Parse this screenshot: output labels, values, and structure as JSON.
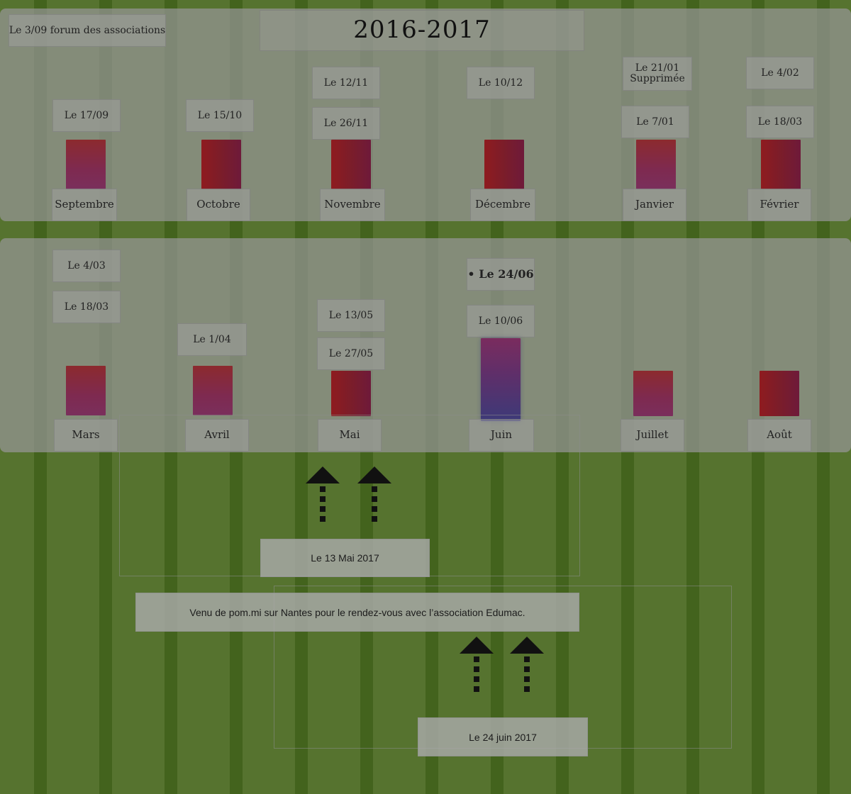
{
  "title": "2016-2017",
  "forum": "Le 3/09 forum des associations",
  "row1": {
    "months": [
      "Septembre",
      "Octobre",
      "Novembre",
      "Décembre",
      "Janvier",
      "Février"
    ],
    "septembre": {
      "d1": "Le 17/09"
    },
    "octobre": {
      "d1": "Le 15/10"
    },
    "novembre": {
      "d1": "Le 12/11",
      "d2": "Le 26/11"
    },
    "decembre": {
      "d1": "Le 10/12"
    },
    "janvier": {
      "d1_line1": "Le 21/01",
      "d1_line2": "Supprimée",
      "d2": "Le 7/01"
    },
    "fevrier": {
      "d1": "Le 4/02",
      "d2": "Le 18/03"
    }
  },
  "row2": {
    "months": [
      "Mars",
      "Avril",
      "Mai",
      "Juin",
      "Juillet",
      "Août"
    ],
    "mars": {
      "d1": "Le 4/03",
      "d2": "Le 18/03"
    },
    "avril": {
      "d1": "Le 1/04"
    },
    "mai": {
      "d1": "Le 13/05",
      "d2": "Le 27/05"
    },
    "juin": {
      "d1": "• Le 24/06",
      "d2": "Le 10/06"
    }
  },
  "notes": {
    "mai_date": "Le 13 Mai 2017",
    "visit": "Venu de pom.mi sur Nantes pour le rendez-vous avec l’association Edumac.",
    "juin_date": "Le 24 juin 2017"
  },
  "colors": {
    "background_green": "#56732f",
    "bar_red": "#8c2a2e",
    "bar_highlight": "#3d3a78"
  }
}
